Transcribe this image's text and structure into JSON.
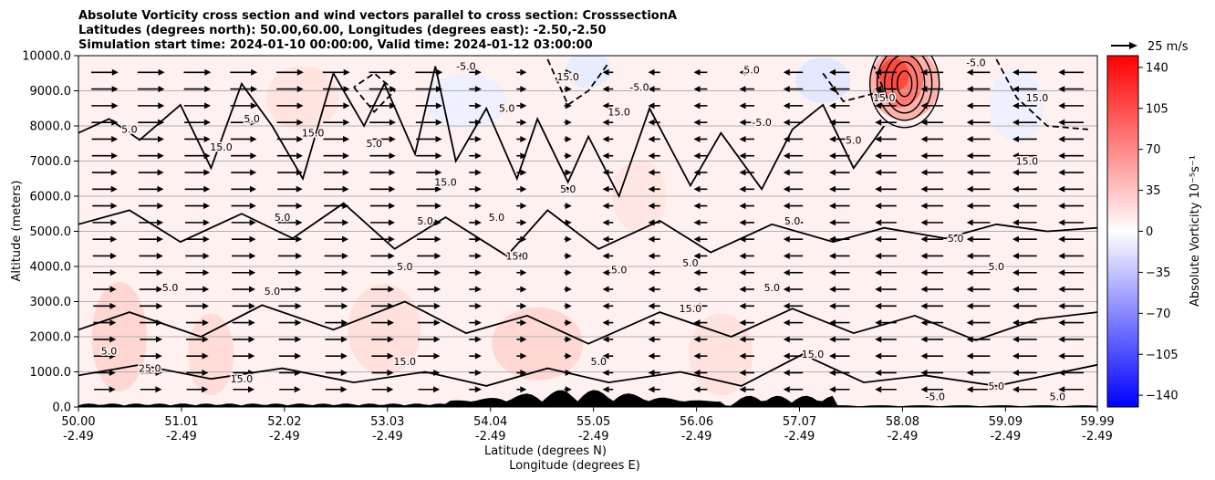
{
  "chart_data": {
    "type": "contour",
    "title_lines": [
      "Absolute Vorticity cross section and wind vectors parallel to cross section: CrosssectionA",
      "Latitudes (degrees north): 50.00,60.00, Longitudes (degrees east): -2.50,-2.50",
      "Simulation start time: 2024-01-10 00:00:00, Valid time: 2024-01-12 03:00:00"
    ],
    "ylabel": "Altitude (meters)",
    "xlabel_lat": "Latitude (degrees N)",
    "xlabel_lon": "Longitude (degrees E)",
    "ylim": [
      0,
      10000
    ],
    "y_ticks": [
      "0.0",
      "1000.0",
      "2000.0",
      "3000.0",
      "4000.0",
      "5000.0",
      "6000.0",
      "7000.0",
      "8000.0",
      "9000.0",
      "10000.0"
    ],
    "xlim": [
      50.0,
      59.99
    ],
    "x_ticks": [
      {
        "lat": "50.00",
        "lon": "-2.49"
      },
      {
        "lat": "51.01",
        "lon": "-2.49"
      },
      {
        "lat": "52.02",
        "lon": "-2.49"
      },
      {
        "lat": "53.03",
        "lon": "-2.49"
      },
      {
        "lat": "54.04",
        "lon": "-2.49"
      },
      {
        "lat": "55.05",
        "lon": "-2.49"
      },
      {
        "lat": "56.06",
        "lon": "-2.49"
      },
      {
        "lat": "57.07",
        "lon": "-2.49"
      },
      {
        "lat": "58.08",
        "lon": "-2.49"
      },
      {
        "lat": "59.09",
        "lon": "-2.49"
      },
      {
        "lat": "59.99",
        "lon": "-2.49"
      }
    ],
    "grid": "horizontal",
    "colorbar": {
      "label": "Absolute Vorticity 10⁻⁵s⁻¹",
      "range": [
        -150,
        150
      ],
      "ticks": [
        "140",
        "105",
        "70",
        "35",
        "0",
        "−35",
        "−70",
        "−105",
        "−140"
      ],
      "colors": {
        "negative": "#0000ff",
        "zero": "#ffffff",
        "positive": "#ff0000"
      }
    },
    "quiver_key": {
      "label": "25 m/s",
      "value": 25
    },
    "contour_levels_labeled": [
      "-5.0",
      "5.0",
      "15.0",
      "25.0"
    ],
    "contour_labels": [
      {
        "text": "5.0",
        "lat": 50.5,
        "alt": 7800
      },
      {
        "text": "15.0",
        "lat": 51.4,
        "alt": 7300
      },
      {
        "text": "5.0",
        "lat": 51.7,
        "alt": 8100
      },
      {
        "text": "15.0",
        "lat": 52.3,
        "alt": 7700
      },
      {
        "text": "5.0",
        "lat": 52.9,
        "alt": 7400
      },
      {
        "text": "15.0",
        "lat": 53.6,
        "alt": 6300
      },
      {
        "text": "5.0",
        "lat": 52.0,
        "alt": 5300
      },
      {
        "text": "5.0",
        "lat": 53.2,
        "alt": 3900
      },
      {
        "text": "5.0",
        "lat": 51.9,
        "alt": 3200
      },
      {
        "text": "5.0",
        "lat": 50.9,
        "alt": 3300
      },
      {
        "text": "-5.0",
        "lat": 53.8,
        "alt": 9600
      },
      {
        "text": "15.0",
        "lat": 54.8,
        "alt": 9300
      },
      {
        "text": "5.0",
        "lat": 54.2,
        "alt": 8400
      },
      {
        "text": "15.0",
        "lat": 55.3,
        "alt": 8300
      },
      {
        "text": "-5.0",
        "lat": 55.5,
        "alt": 9000
      },
      {
        "text": "5.0",
        "lat": 53.4,
        "alt": 5200
      },
      {
        "text": "5.0",
        "lat": 54.8,
        "alt": 6100
      },
      {
        "text": "5.0",
        "lat": 54.1,
        "alt": 5300
      },
      {
        "text": "15.0",
        "lat": 54.3,
        "alt": 4200
      },
      {
        "text": "5.0",
        "lat": 55.3,
        "alt": 3800
      },
      {
        "text": "5.0",
        "lat": 56.0,
        "alt": 4000
      },
      {
        "text": "5.0",
        "lat": 56.8,
        "alt": 3300
      },
      {
        "text": "15.0",
        "lat": 56.0,
        "alt": 2700
      },
      {
        "text": "5.0",
        "lat": 56.6,
        "alt": 9500
      },
      {
        "text": "-5.0",
        "lat": 56.7,
        "alt": 8000
      },
      {
        "text": "15.0",
        "lat": 57.9,
        "alt": 8700
      },
      {
        "text": "5.0",
        "lat": 57.6,
        "alt": 7500
      },
      {
        "text": "5.0",
        "lat": 57.0,
        "alt": 5200
      },
      {
        "text": "5.0",
        "lat": 58.6,
        "alt": 4700
      },
      {
        "text": "15.0",
        "lat": 59.3,
        "alt": 6900
      },
      {
        "text": "15.0",
        "lat": 59.4,
        "alt": 8700
      },
      {
        "text": "-5.0",
        "lat": 58.8,
        "alt": 9700
      },
      {
        "text": "5.0",
        "lat": 59.0,
        "alt": 3900
      },
      {
        "text": "15.0",
        "lat": 57.2,
        "alt": 1400
      },
      {
        "text": "15.0",
        "lat": 53.2,
        "alt": 1200
      },
      {
        "text": "25.0",
        "lat": 50.7,
        "alt": 1000
      },
      {
        "text": "5.0",
        "lat": 50.3,
        "alt": 1500
      },
      {
        "text": "15.0",
        "lat": 51.6,
        "alt": 700
      },
      {
        "text": "5.0",
        "lat": 55.1,
        "alt": 1200
      },
      {
        "text": "-5.0",
        "lat": 58.4,
        "alt": 200
      },
      {
        "text": "5.0",
        "lat": 59.6,
        "alt": 200
      },
      {
        "text": "5.0",
        "lat": 59.0,
        "alt": 500
      }
    ]
  }
}
